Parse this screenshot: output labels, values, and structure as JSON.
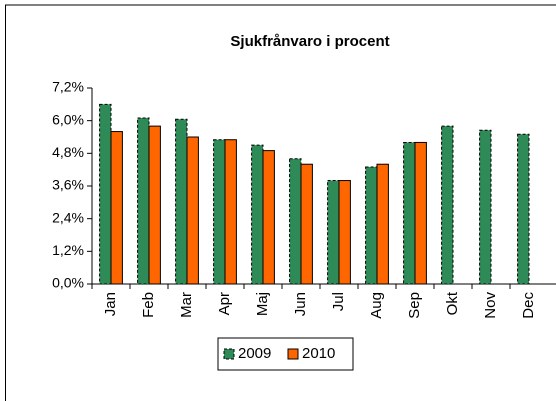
{
  "chart_data": {
    "type": "bar",
    "title": "Sjukfrånvaro i procent",
    "categories": [
      "Jan",
      "Feb",
      "Mar",
      "Apr",
      "Maj",
      "Jun",
      "Jul",
      "Aug",
      "Sep",
      "Okt",
      "Nov",
      "Dec"
    ],
    "series": [
      {
        "name": "2009",
        "color": "#2e8b57",
        "values": [
          6.6,
          6.1,
          6.05,
          5.3,
          5.1,
          4.6,
          3.8,
          4.3,
          5.2,
          5.8,
          5.65,
          5.5
        ]
      },
      {
        "name": "2010",
        "color": "#ff6600",
        "values": [
          5.6,
          5.8,
          5.4,
          5.3,
          4.9,
          4.4,
          3.8,
          4.4,
          5.2,
          null,
          null,
          null
        ]
      }
    ],
    "ylim": [
      0,
      7.2
    ],
    "yticks": [
      {
        "value": 0,
        "label": "0,0%"
      },
      {
        "value": 1.2,
        "label": "1,2%"
      },
      {
        "value": 2.4,
        "label": "2,4%"
      },
      {
        "value": 3.6,
        "label": "3,6%"
      },
      {
        "value": 4.8,
        "label": "4,8%"
      },
      {
        "value": 6.0,
        "label": "6,0%"
      },
      {
        "value": 7.2,
        "label": "7,2%"
      }
    ],
    "legend": "bottom"
  }
}
